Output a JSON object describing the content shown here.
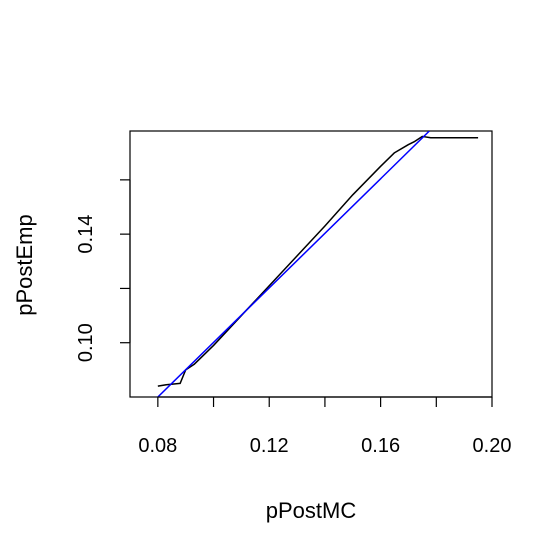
{
  "chart_data": {
    "type": "line",
    "title": "",
    "xlabel": "pPostMC",
    "ylabel": "pPostEmp",
    "xlim": [
      0.07,
      0.2
    ],
    "ylim": [
      0.08,
      0.178
    ],
    "x_ticks": [
      0.08,
      0.1,
      0.12,
      0.14,
      0.16,
      0.18,
      0.2
    ],
    "x_tick_labels": [
      "0.08",
      "",
      "0.12",
      "",
      "0.16",
      "",
      "0.20"
    ],
    "y_ticks": [
      0.1,
      0.12,
      0.14,
      0.16
    ],
    "y_tick_labels": [
      "0.10",
      "",
      "0.14",
      ""
    ],
    "grid": false,
    "legend": "none",
    "series": [
      {
        "color": "#000000",
        "x": [
          0.08,
          0.083,
          0.088,
          0.09,
          0.093,
          0.096,
          0.1,
          0.11,
          0.12,
          0.13,
          0.14,
          0.15,
          0.16,
          0.165,
          0.17,
          0.172,
          0.175,
          0.178,
          0.185,
          0.195
        ],
        "y": [
          0.084,
          0.0845,
          0.085,
          0.09,
          0.092,
          0.095,
          0.099,
          0.11,
          0.121,
          0.132,
          0.143,
          0.1545,
          0.165,
          0.17,
          0.173,
          0.174,
          0.176,
          0.1755,
          0.1755,
          0.1755
        ]
      },
      {
        "color": "#0000ff",
        "x": [
          0.08,
          0.1775
        ],
        "y": [
          0.08,
          0.178
        ]
      }
    ]
  }
}
